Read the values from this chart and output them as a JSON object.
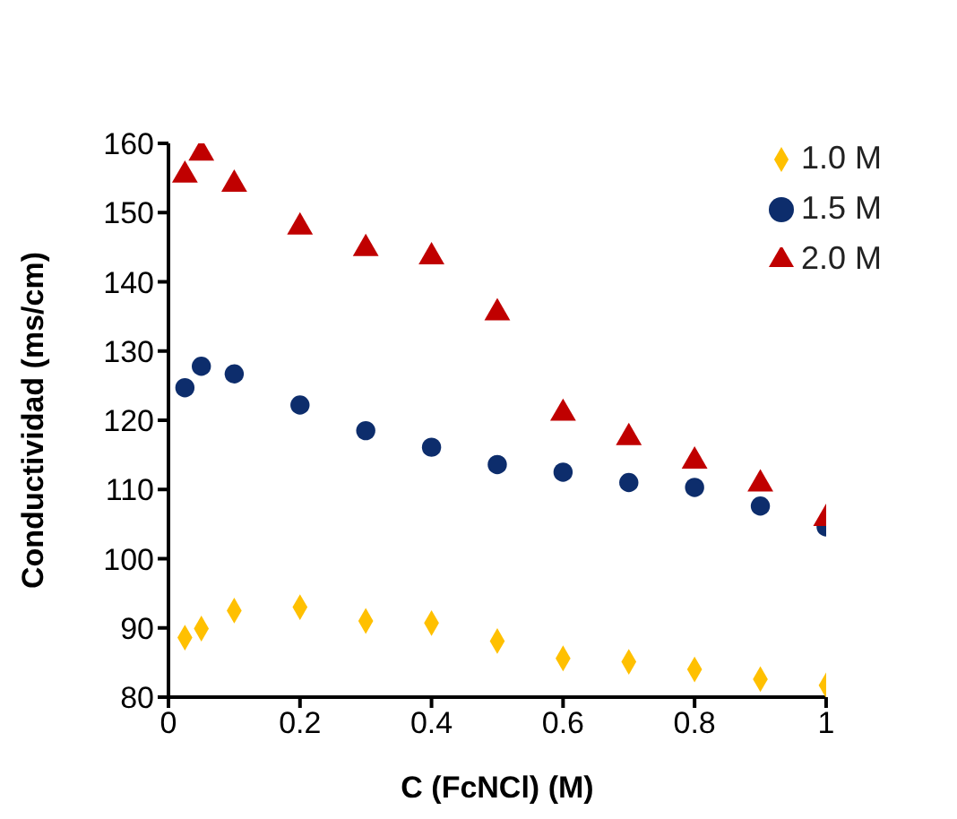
{
  "chart_data": {
    "type": "scatter",
    "xlabel": "C (FcNCl) (M)",
    "ylabel": "Conductividad (ms/cm)",
    "x": [
      0.025,
      0.05,
      0.1,
      0.2,
      0.3,
      0.4,
      0.5,
      0.6,
      0.7,
      0.8,
      0.9,
      1
    ],
    "series": [
      {
        "name": "1.0 M",
        "color": "#ffc000",
        "marker": "diamond",
        "values": [
          88.6,
          89.9,
          92.5,
          93.0,
          91.0,
          90.7,
          88.1,
          85.6,
          85.1,
          84.0,
          82.6,
          81.7
        ]
      },
      {
        "name": "1.5 M",
        "color": "#0d2d6c",
        "marker": "circle",
        "values": [
          124.7,
          127.8,
          126.7,
          122.2,
          118.5,
          116.1,
          113.6,
          112.5,
          111.0,
          110.3,
          107.6,
          104.6
        ]
      },
      {
        "name": "2.0 M",
        "color": "#c00000",
        "marker": "triangle",
        "values": [
          155.4,
          158.6,
          154.1,
          147.9,
          144.8,
          143.6,
          135.5,
          121.0,
          117.5,
          114.1,
          110.8,
          105.8
        ]
      }
    ],
    "xlim": [
      0,
      1
    ],
    "xticks": [
      0,
      0.2,
      0.4,
      0.6,
      0.8,
      1
    ],
    "ylim": [
      80,
      160
    ],
    "yticks": [
      80,
      90,
      100,
      110,
      120,
      130,
      140,
      150,
      160
    ],
    "grid": false,
    "legend": "top right"
  }
}
